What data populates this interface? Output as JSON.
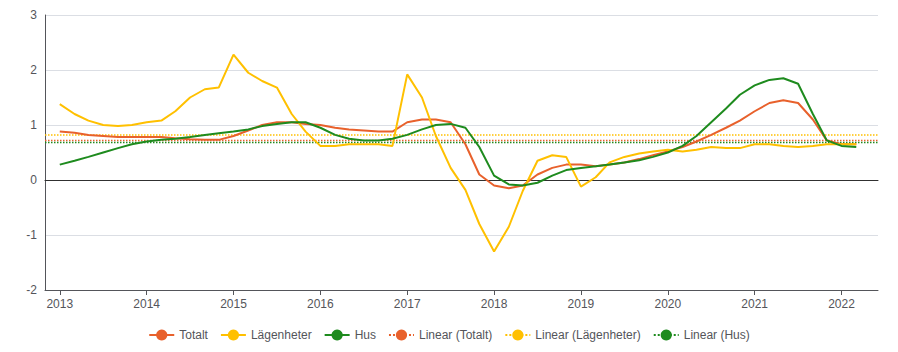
{
  "chart_data": {
    "type": "line",
    "x": [
      2013.0,
      2013.17,
      2013.33,
      2013.5,
      2013.67,
      2013.83,
      2014.0,
      2014.17,
      2014.33,
      2014.5,
      2014.67,
      2014.83,
      2015.0,
      2015.17,
      2015.33,
      2015.5,
      2015.67,
      2015.83,
      2016.0,
      2016.17,
      2016.33,
      2016.5,
      2016.67,
      2016.83,
      2017.0,
      2017.17,
      2017.33,
      2017.5,
      2017.67,
      2017.83,
      2018.0,
      2018.17,
      2018.33,
      2018.5,
      2018.67,
      2018.83,
      2019.0,
      2019.17,
      2019.33,
      2019.5,
      2019.67,
      2019.83,
      2020.0,
      2020.17,
      2020.33,
      2020.5,
      2020.67,
      2020.83,
      2021.0,
      2021.17,
      2021.33,
      2021.5,
      2021.67,
      2021.83,
      2022.0,
      2022.17
    ],
    "xlim": [
      2012.83,
      2022.42
    ],
    "xticks": [
      2013,
      2014,
      2015,
      2016,
      2017,
      2018,
      2019,
      2020,
      2021,
      2022
    ],
    "ylim": [
      -2,
      3
    ],
    "yticks": [
      -2,
      -1,
      0,
      1,
      2,
      3
    ],
    "grid": true,
    "legend": "bottom",
    "series": [
      {
        "name": "Totalt",
        "color": "#E8612C",
        "values": [
          0.88,
          0.86,
          0.82,
          0.8,
          0.78,
          0.78,
          0.78,
          0.78,
          0.76,
          0.74,
          0.73,
          0.73,
          0.8,
          0.9,
          1.0,
          1.05,
          1.05,
          1.02,
          1.0,
          0.95,
          0.92,
          0.9,
          0.88,
          0.88,
          1.05,
          1.1,
          1.1,
          1.05,
          0.65,
          0.1,
          -0.1,
          -0.15,
          -0.1,
          0.1,
          0.22,
          0.28,
          0.28,
          0.25,
          0.28,
          0.32,
          0.38,
          0.45,
          0.52,
          0.6,
          0.7,
          0.82,
          0.95,
          1.08,
          1.25,
          1.4,
          1.45,
          1.4,
          1.1,
          0.72,
          0.65,
          0.65
        ]
      },
      {
        "name": "Lägenheter",
        "color": "#FFC000",
        "values": [
          1.38,
          1.2,
          1.08,
          1.0,
          0.98,
          1.0,
          1.05,
          1.08,
          1.25,
          1.5,
          1.65,
          1.68,
          2.28,
          1.95,
          1.8,
          1.68,
          1.2,
          0.88,
          0.62,
          0.62,
          0.65,
          0.65,
          0.65,
          0.62,
          1.92,
          1.5,
          0.8,
          0.22,
          -0.18,
          -0.8,
          -1.3,
          -0.85,
          -0.2,
          0.35,
          0.45,
          0.42,
          -0.12,
          0.05,
          0.32,
          0.42,
          0.48,
          0.52,
          0.55,
          0.52,
          0.55,
          0.6,
          0.58,
          0.58,
          0.65,
          0.65,
          0.62,
          0.6,
          0.62,
          0.65,
          0.65,
          0.65
        ]
      },
      {
        "name": "Hus",
        "color": "#1E8B1E",
        "values": [
          0.28,
          0.35,
          0.42,
          0.5,
          0.58,
          0.65,
          0.7,
          0.73,
          0.75,
          0.78,
          0.82,
          0.85,
          0.88,
          0.92,
          0.98,
          1.02,
          1.05,
          1.05,
          0.95,
          0.82,
          0.75,
          0.72,
          0.72,
          0.75,
          0.82,
          0.92,
          1.0,
          1.02,
          0.95,
          0.6,
          0.08,
          -0.08,
          -0.1,
          -0.05,
          0.08,
          0.18,
          0.22,
          0.25,
          0.28,
          0.32,
          0.36,
          0.42,
          0.5,
          0.62,
          0.8,
          1.05,
          1.3,
          1.55,
          1.72,
          1.82,
          1.85,
          1.75,
          1.2,
          0.72,
          0.62,
          0.6
        ]
      },
      {
        "name": "Linear (Totalt)",
        "color": "#E8612C",
        "line_style": "dotted",
        "x": [
          2012.83,
          2022.42
        ],
        "values": [
          0.72,
          0.72
        ]
      },
      {
        "name": "Linear (Lägenheter)",
        "color": "#FFC000",
        "line_style": "dotted",
        "x": [
          2012.83,
          2022.42
        ],
        "values": [
          0.82,
          0.82
        ]
      },
      {
        "name": "Linear (Hus)",
        "color": "#1E8B1E",
        "line_style": "dotted",
        "x": [
          2012.83,
          2022.42
        ],
        "values": [
          0.68,
          0.68
        ]
      }
    ]
  }
}
